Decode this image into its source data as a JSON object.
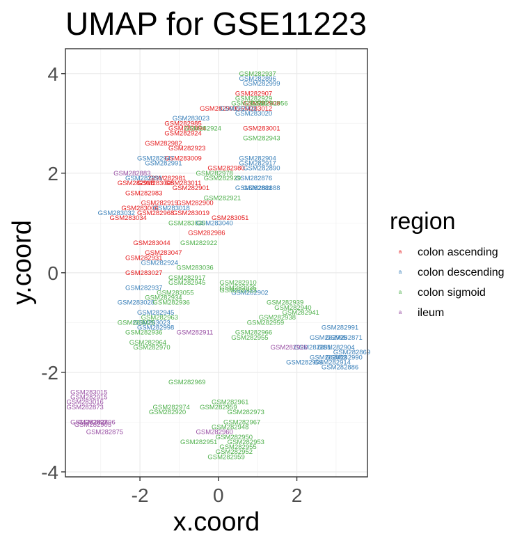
{
  "chart_data": {
    "type": "scatter",
    "title": "UMAP for GSE11223",
    "xlabel": "x.coord",
    "ylabel": "y.coord",
    "xlim": [
      -3.9,
      3.8
    ],
    "ylim": [
      -4.1,
      4.5
    ],
    "xticks": [
      -2,
      0,
      2
    ],
    "yticks": [
      -4,
      -2,
      0,
      2,
      4
    ],
    "xtick_labels": [
      "-2",
      "0",
      "2"
    ],
    "ytick_labels": [
      "-4",
      "-2",
      "0",
      "2",
      "4"
    ],
    "grid": true,
    "point_glyph": "a",
    "legend": {
      "title": "region",
      "placement": "right",
      "entries": [
        {
          "name": "colon ascending",
          "color": "#e41a1c"
        },
        {
          "name": "colon descending",
          "color": "#377eb8"
        },
        {
          "name": "colon sigmoid",
          "color": "#4daf4a"
        },
        {
          "name": "ileum",
          "color": "#984ea3"
        }
      ]
    },
    "series": [
      {
        "name": "colon ascending",
        "color": "#e41a1c",
        "points": [
          {
            "x": 0.9,
            "y": 3.6,
            "label": "GSM282907"
          },
          {
            "x": 1.1,
            "y": 3.4,
            "label": "GSM282908"
          },
          {
            "x": 0.9,
            "y": 3.3,
            "label": "GSM283012"
          },
          {
            "x": 0.0,
            "y": 3.3,
            "label": "GSM282901"
          },
          {
            "x": -0.9,
            "y": 3.0,
            "label": "GSM282985"
          },
          {
            "x": -0.8,
            "y": 2.9,
            "label": "GSM282894"
          },
          {
            "x": -0.9,
            "y": 2.8,
            "label": "GSM282924"
          },
          {
            "x": 1.1,
            "y": 2.9,
            "label": "GSM283001"
          },
          {
            "x": -1.4,
            "y": 2.6,
            "label": "GSM282982"
          },
          {
            "x": -0.8,
            "y": 2.5,
            "label": "GSM282923"
          },
          {
            "x": -0.9,
            "y": 2.3,
            "label": "GSM283009"
          },
          {
            "x": 0.2,
            "y": 2.1,
            "label": "GSM282980"
          },
          {
            "x": -1.3,
            "y": 1.9,
            "label": "GSM282981"
          },
          {
            "x": -2.1,
            "y": 1.8,
            "label": "GSM282918"
          },
          {
            "x": -1.6,
            "y": 1.8,
            "label": "GSM283008"
          },
          {
            "x": -0.9,
            "y": 1.8,
            "label": "GSM283011"
          },
          {
            "x": -0.7,
            "y": 1.7,
            "label": "GSM282901"
          },
          {
            "x": -1.9,
            "y": 1.6,
            "label": "GSM282983"
          },
          {
            "x": -1.5,
            "y": 1.4,
            "label": "GSM282919"
          },
          {
            "x": -2.0,
            "y": 1.3,
            "label": "GSM283006"
          },
          {
            "x": -0.6,
            "y": 1.4,
            "label": "GSM282900"
          },
          {
            "x": -1.6,
            "y": 1.2,
            "label": "GSM282968"
          },
          {
            "x": -0.7,
            "y": 1.2,
            "label": "GSM283019"
          },
          {
            "x": 0.3,
            "y": 1.1,
            "label": "GSM283051"
          },
          {
            "x": -2.3,
            "y": 1.1,
            "label": "GSM283034"
          },
          {
            "x": -0.3,
            "y": 0.8,
            "label": "GSM282986"
          },
          {
            "x": -1.7,
            "y": 0.6,
            "label": "GSM283044"
          },
          {
            "x": -1.4,
            "y": 0.4,
            "label": "GSM283047"
          },
          {
            "x": -1.9,
            "y": 0.3,
            "label": "GSM282931"
          },
          {
            "x": -1.9,
            "y": 0.0,
            "label": "GSM283027"
          }
        ]
      },
      {
        "name": "colon descending",
        "color": "#377eb8",
        "points": [
          {
            "x": 1.0,
            "y": 3.9,
            "label": "GSM282896"
          },
          {
            "x": 1.1,
            "y": 3.8,
            "label": "GSM282999"
          },
          {
            "x": 0.5,
            "y": 3.3,
            "label": "GSM282903"
          },
          {
            "x": 0.9,
            "y": 3.2,
            "label": "GSM283020"
          },
          {
            "x": -0.7,
            "y": 3.1,
            "label": "GSM283023"
          },
          {
            "x": -1.6,
            "y": 2.3,
            "label": "GSM282947"
          },
          {
            "x": -1.4,
            "y": 2.2,
            "label": "GSM282991"
          },
          {
            "x": 1.0,
            "y": 2.3,
            "label": "GSM282904"
          },
          {
            "x": 1.0,
            "y": 2.2,
            "label": "GSM282917"
          },
          {
            "x": 1.1,
            "y": 2.1,
            "label": "GSM282890"
          },
          {
            "x": -1.9,
            "y": 1.9,
            "label": "GSM282891"
          },
          {
            "x": 0.9,
            "y": 1.9,
            "label": "GSM282876"
          },
          {
            "x": 0.9,
            "y": 1.7,
            "label": "GSM282881"
          },
          {
            "x": 1.1,
            "y": 1.7,
            "label": "GSM282888"
          },
          {
            "x": -1.2,
            "y": 1.3,
            "label": "GSM283018"
          },
          {
            "x": -2.6,
            "y": 1.2,
            "label": "GSM283032"
          },
          {
            "x": -0.1,
            "y": 1.0,
            "label": "GSM283040"
          },
          {
            "x": -1.5,
            "y": 0.2,
            "label": "GSM282924"
          },
          {
            "x": -1.9,
            "y": -0.3,
            "label": "GSM282937"
          },
          {
            "x": -2.1,
            "y": -0.6,
            "label": "GSM283028"
          },
          {
            "x": -1.6,
            "y": -0.8,
            "label": "GSM282945"
          },
          {
            "x": -1.7,
            "y": -1.0,
            "label": "GSM283023"
          },
          {
            "x": -1.6,
            "y": -1.1,
            "label": "GSM282998"
          },
          {
            "x": 0.8,
            "y": -0.4,
            "label": "GSM282902"
          },
          {
            "x": 3.1,
            "y": -1.1,
            "label": "GSM282991"
          },
          {
            "x": 2.8,
            "y": -1.3,
            "label": "GSM282995"
          },
          {
            "x": 3.2,
            "y": -1.3,
            "label": "GSM282871"
          },
          {
            "x": 2.4,
            "y": -1.5,
            "label": "GSM282881"
          },
          {
            "x": 3.0,
            "y": -1.5,
            "label": "GSM282904"
          },
          {
            "x": 3.4,
            "y": -1.6,
            "label": "GSM282869"
          },
          {
            "x": 2.8,
            "y": -1.7,
            "label": "GSM282883"
          },
          {
            "x": 3.2,
            "y": -1.7,
            "label": "GSM282990"
          },
          {
            "x": 2.2,
            "y": -1.8,
            "label": "GSM282994"
          },
          {
            "x": 2.9,
            "y": -1.8,
            "label": "GSM282914"
          },
          {
            "x": 3.1,
            "y": -1.9,
            "label": "GSM282886"
          }
        ]
      },
      {
        "name": "colon sigmoid",
        "color": "#4daf4a",
        "points": [
          {
            "x": 1.0,
            "y": 4.0,
            "label": "GSM282937"
          },
          {
            "x": 0.9,
            "y": 3.5,
            "label": "GSM282929"
          },
          {
            "x": 0.8,
            "y": 3.4,
            "label": "GSM282921"
          },
          {
            "x": 1.3,
            "y": 3.4,
            "label": "GSM282956"
          },
          {
            "x": -0.4,
            "y": 2.9,
            "label": "GSM282924"
          },
          {
            "x": 1.1,
            "y": 2.7,
            "label": "GSM282943"
          },
          {
            "x": -0.1,
            "y": 2.0,
            "label": "GSM282978"
          },
          {
            "x": 0.1,
            "y": 1.9,
            "label": "GSM282929"
          },
          {
            "x": 0.1,
            "y": 1.5,
            "label": "GSM282921"
          },
          {
            "x": -0.8,
            "y": 1.0,
            "label": "GSM283030"
          },
          {
            "x": -0.5,
            "y": 0.6,
            "label": "GSM282922"
          },
          {
            "x": -0.6,
            "y": 0.1,
            "label": "GSM283036"
          },
          {
            "x": -0.8,
            "y": -0.1,
            "label": "GSM282917"
          },
          {
            "x": 0.5,
            "y": -0.2,
            "label": "GSM282910"
          },
          {
            "x": 0.5,
            "y": -0.3,
            "label": "GSM282935"
          },
          {
            "x": 0.5,
            "y": -0.35,
            "label": "GSM282913"
          },
          {
            "x": -0.8,
            "y": -0.2,
            "label": "GSM282945"
          },
          {
            "x": -1.1,
            "y": -0.4,
            "label": "GSM283055"
          },
          {
            "x": -1.4,
            "y": -0.5,
            "label": "GSM282934"
          },
          {
            "x": -1.2,
            "y": -0.6,
            "label": "GSM282936"
          },
          {
            "x": -1.5,
            "y": -0.9,
            "label": "GSM282963"
          },
          {
            "x": -2.1,
            "y": -1.0,
            "label": "GSM283025"
          },
          {
            "x": -1.9,
            "y": -1.2,
            "label": "GSM282936"
          },
          {
            "x": -1.8,
            "y": -1.4,
            "label": "GSM282964"
          },
          {
            "x": -1.7,
            "y": -1.5,
            "label": "GSM282970"
          },
          {
            "x": 1.7,
            "y": -0.6,
            "label": "GSM282939"
          },
          {
            "x": 1.9,
            "y": -0.7,
            "label": "GSM282940"
          },
          {
            "x": 2.1,
            "y": -0.8,
            "label": "GSM282941"
          },
          {
            "x": 1.5,
            "y": -0.9,
            "label": "GSM282938"
          },
          {
            "x": 1.2,
            "y": -1.0,
            "label": "GSM282959"
          },
          {
            "x": 0.9,
            "y": -1.2,
            "label": "GSM282966"
          },
          {
            "x": 0.8,
            "y": -1.3,
            "label": "GSM282955"
          },
          {
            "x": -0.8,
            "y": -2.2,
            "label": "GSM282969"
          },
          {
            "x": 0.3,
            "y": -2.6,
            "label": "GSM282961"
          },
          {
            "x": 0.0,
            "y": -2.7,
            "label": "GSM282959"
          },
          {
            "x": 0.7,
            "y": -2.8,
            "label": "GSM282973"
          },
          {
            "x": -1.2,
            "y": -2.7,
            "label": "GSM282974"
          },
          {
            "x": -1.3,
            "y": -2.8,
            "label": "GSM282920"
          },
          {
            "x": 0.6,
            "y": -3.0,
            "label": "GSM282967"
          },
          {
            "x": 0.3,
            "y": -3.1,
            "label": "GSM282948"
          },
          {
            "x": 0.4,
            "y": -3.3,
            "label": "GSM282950"
          },
          {
            "x": 0.7,
            "y": -3.4,
            "label": "GSM282953"
          },
          {
            "x": 0.5,
            "y": -3.5,
            "label": "GSM282955"
          },
          {
            "x": -0.5,
            "y": -3.4,
            "label": "GSM282951"
          },
          {
            "x": 0.4,
            "y": -3.6,
            "label": "GSM282952"
          },
          {
            "x": 0.2,
            "y": -3.7,
            "label": "GSM282959"
          }
        ]
      },
      {
        "name": "ileum",
        "color": "#984ea3",
        "points": [
          {
            "x": -3.3,
            "y": -2.4,
            "label": "GSM283015"
          },
          {
            "x": -3.3,
            "y": -2.5,
            "label": "GSM282915"
          },
          {
            "x": -3.4,
            "y": -2.6,
            "label": "GSM283016"
          },
          {
            "x": -3.4,
            "y": -2.7,
            "label": "GSM282873"
          },
          {
            "x": -3.3,
            "y": -3.0,
            "label": "GSM282897"
          },
          {
            "x": -3.1,
            "y": -3.0,
            "label": "GSM282896"
          },
          {
            "x": -3.2,
            "y": -3.05,
            "label": "GSM282905"
          },
          {
            "x": -2.9,
            "y": -3.2,
            "label": "GSM282875"
          },
          {
            "x": -0.6,
            "y": -1.2,
            "label": "GSM282911"
          },
          {
            "x": 1.8,
            "y": -1.5,
            "label": "GSM282926"
          },
          {
            "x": -2.2,
            "y": 2.0,
            "label": "GSM282883"
          },
          {
            "x": -0.1,
            "y": -3.2,
            "label": "GSM282960"
          }
        ]
      }
    ]
  }
}
